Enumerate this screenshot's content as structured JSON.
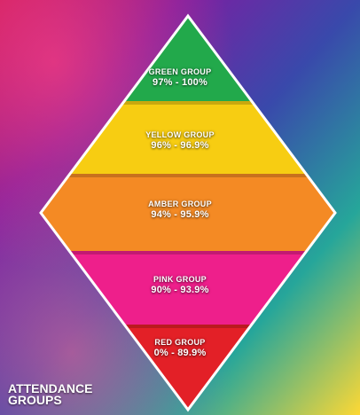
{
  "colors": {
    "green": "#22a94b",
    "yellow": "#f7cd12",
    "amber": "#f48a24",
    "pink": "#ee1f8b",
    "red": "#e32027",
    "outline": "#ffffff"
  },
  "groups": [
    {
      "name": "GREEN GROUP",
      "range": "97% - 100%",
      "color_key": "green"
    },
    {
      "name": "YELLOW GROUP",
      "range": "96% - 96.9%",
      "color_key": "yellow"
    },
    {
      "name": "AMBER GROUP",
      "range": "94% - 95.9%",
      "color_key": "amber"
    },
    {
      "name": "PINK GROUP",
      "range": "90% - 93.9%",
      "color_key": "pink"
    },
    {
      "name": "RED GROUP",
      "range": "0% - 89.9%",
      "color_key": "red"
    }
  ],
  "caption": {
    "line1": "ATTENDANCE",
    "line2": "GROUPS"
  }
}
